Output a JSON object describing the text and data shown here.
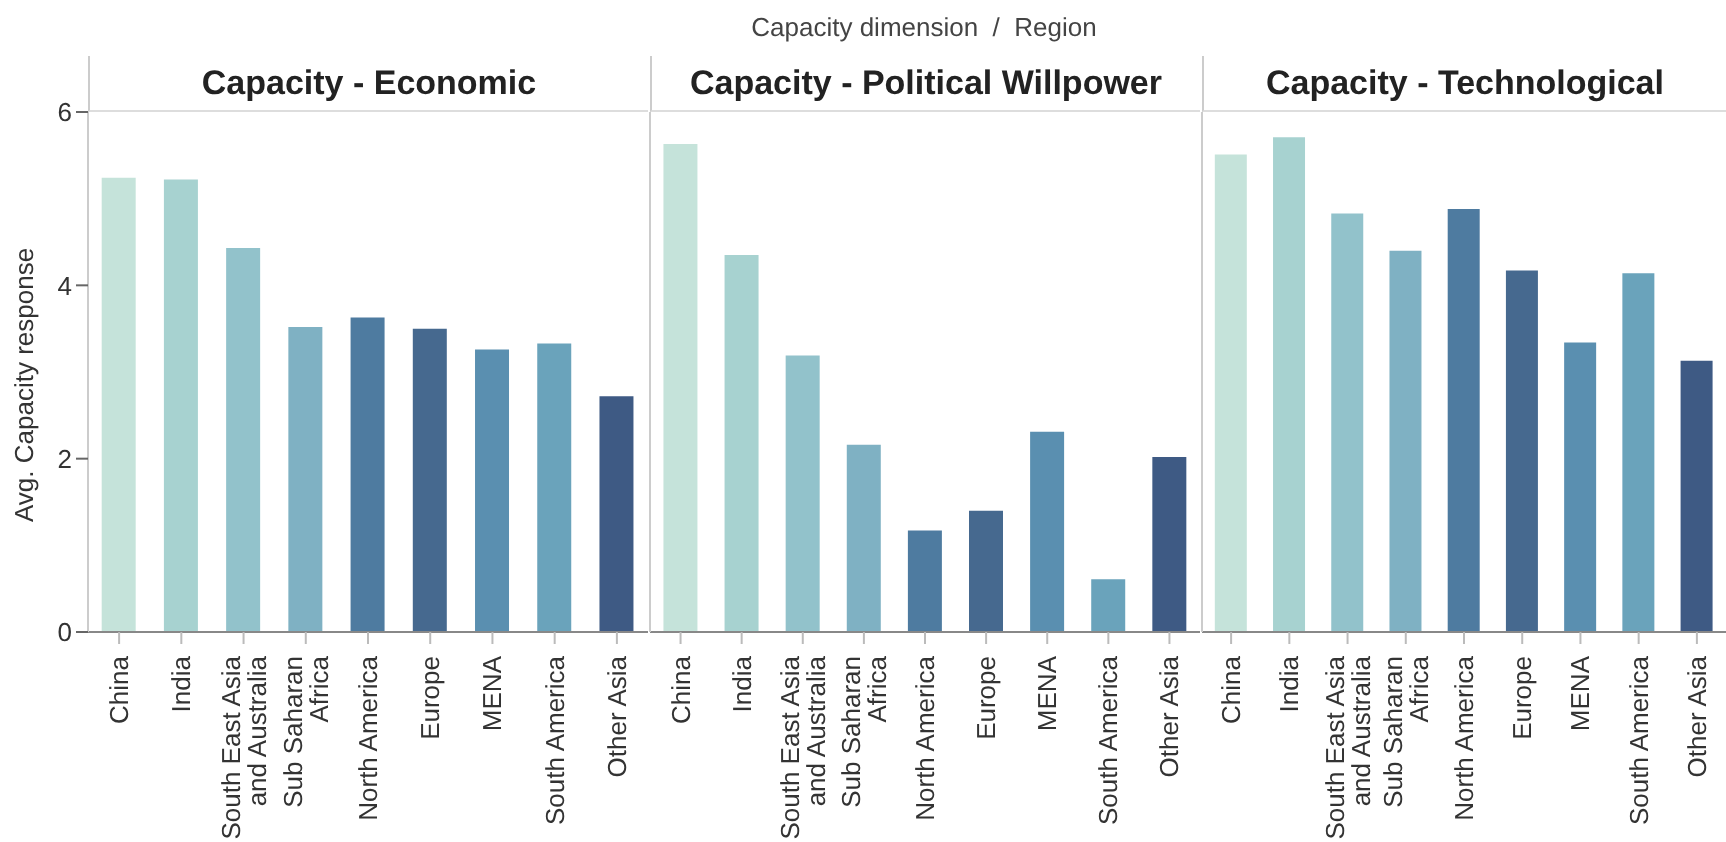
{
  "chart_data": [
    {
      "type": "bar",
      "title": "Capacity - Economic",
      "ylabel": "Avg. Capacity response",
      "categories": [
        "China",
        "India",
        "South East Asia and Australia",
        "Sub Saharan Africa",
        "North America",
        "Europe",
        "MENA",
        "South America",
        "Other Asia"
      ],
      "values": [
        5.24,
        5.22,
        4.43,
        3.52,
        3.63,
        3.5,
        3.26,
        3.33,
        2.72
      ],
      "colors": [
        "#c5e3da",
        "#a7d2d0",
        "#92c2cb",
        "#7fb1c3",
        "#4e7ba0",
        "#46698f",
        "#5a8fb0",
        "#6aa3bb",
        "#3e5a84"
      ],
      "ylim": [
        0,
        6
      ],
      "yticks": [
        0,
        2,
        4,
        6
      ]
    },
    {
      "type": "bar",
      "title": "Capacity - Political Willpower",
      "annotations": [
        "Capacity dimension  /  Region"
      ],
      "categories": [
        "China",
        "India",
        "South East Asia and Australia",
        "Sub Saharan Africa",
        "North America",
        "Europe",
        "MENA",
        "South America",
        "Other Asia"
      ],
      "values": [
        5.63,
        4.35,
        3.19,
        2.16,
        1.17,
        1.4,
        2.31,
        0.61,
        2.02
      ],
      "colors": [
        "#c5e3da",
        "#a7d2d0",
        "#92c2cb",
        "#7fb1c3",
        "#4e7ba0",
        "#46698f",
        "#5a8fb0",
        "#6aa3bb",
        "#3e5a84"
      ],
      "ylim": [
        0,
        6
      ],
      "yticks": [
        0,
        2,
        4,
        6
      ],
      "tick_labels": "x"
    },
    {
      "type": "bar",
      "title": "Capacity - Technological",
      "categories": [
        "China",
        "India",
        "South East Asia and Australia",
        "Sub Saharan Africa",
        "North America",
        "Europe",
        "MENA",
        "South America",
        "Other Asia"
      ],
      "values": [
        5.51,
        5.71,
        4.83,
        4.4,
        4.88,
        4.17,
        3.34,
        4.14,
        3.13
      ],
      "colors": [
        "#c5e3da",
        "#a7d2d0",
        "#92c2cb",
        "#7fb1c3",
        "#4e7ba0",
        "#46698f",
        "#5a8fb0",
        "#6aa3bb",
        "#3e5a84"
      ],
      "ylim": [
        0,
        6
      ],
      "yticks": [
        0,
        2,
        4,
        6
      ],
      "tick_labels": "x"
    }
  ]
}
